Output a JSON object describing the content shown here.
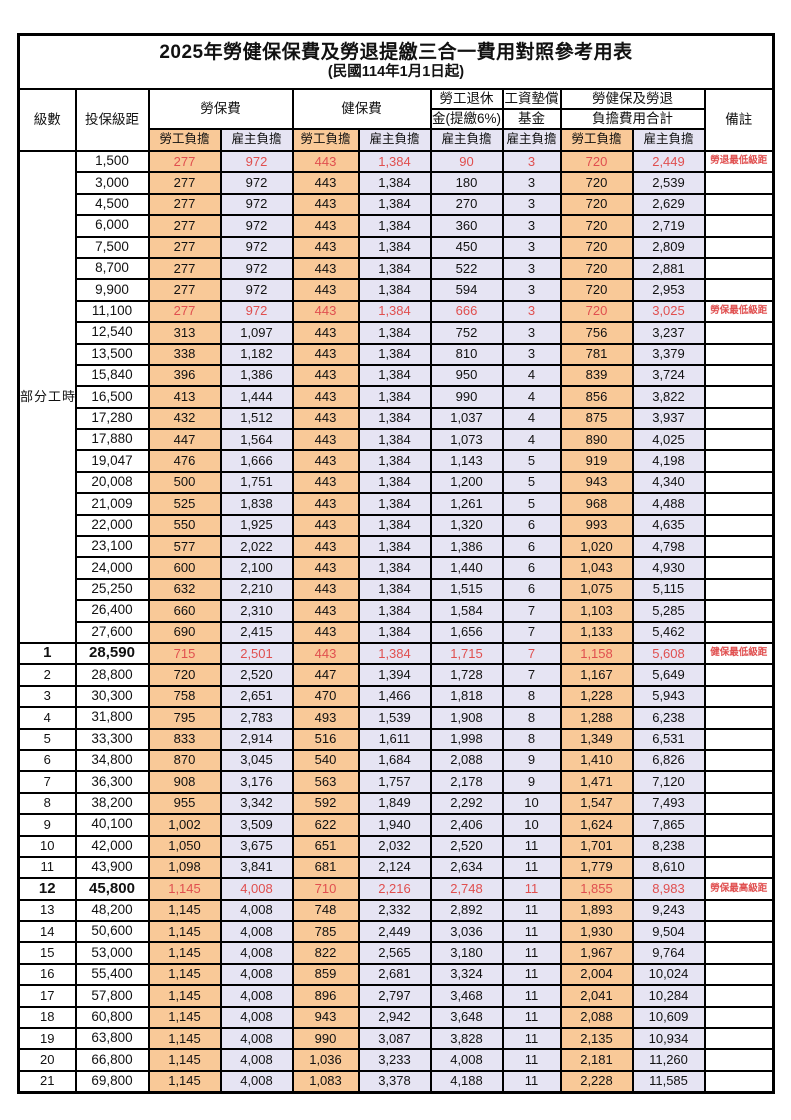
{
  "title": "2025年勞健保保費及勞退提繳三合一費用對照參考用表",
  "subtitle": "(民國114年1月1日起)",
  "header": {
    "level": "級數",
    "bracket": "投保級距",
    "labor_fee": "勞保費",
    "health_fee": "健保費",
    "pension_line1": "勞工退休",
    "pension_line2": "金(提繳6%)",
    "fund_line1": "工資墊償",
    "fund_line2": "基金",
    "total_line1": "勞健保及勞退",
    "total_line2": "負擔費用合計",
    "remark": "備註",
    "worker_share": "勞工負擔",
    "employer_share": "雇主負擔"
  },
  "part_time": {
    "label": "部分工時",
    "span": 23
  },
  "colors": {
    "worker_bg": "#f9c998",
    "employer_bg": "#e6e4f3",
    "highlight_red": "#e04f4f",
    "border": "#000000"
  },
  "value_columns": [
    "labor_worker",
    "labor_employer",
    "health_worker",
    "health_employer",
    "pension_employer",
    "fund_employer",
    "total_worker",
    "total_employer"
  ],
  "rows": [
    {
      "level": "",
      "bracket": "1,500",
      "v": [
        "277",
        "972",
        "443",
        "1,384",
        "90",
        "3",
        "720",
        "2,449"
      ],
      "remark": "勞退最低級距",
      "red": true,
      "bold": false
    },
    {
      "level": "",
      "bracket": "3,000",
      "v": [
        "277",
        "972",
        "443",
        "1,384",
        "180",
        "3",
        "720",
        "2,539"
      ],
      "remark": "",
      "red": false,
      "bold": false
    },
    {
      "level": "",
      "bracket": "4,500",
      "v": [
        "277",
        "972",
        "443",
        "1,384",
        "270",
        "3",
        "720",
        "2,629"
      ],
      "remark": "",
      "red": false,
      "bold": false
    },
    {
      "level": "",
      "bracket": "6,000",
      "v": [
        "277",
        "972",
        "443",
        "1,384",
        "360",
        "3",
        "720",
        "2,719"
      ],
      "remark": "",
      "red": false,
      "bold": false
    },
    {
      "level": "",
      "bracket": "7,500",
      "v": [
        "277",
        "972",
        "443",
        "1,384",
        "450",
        "3",
        "720",
        "2,809"
      ],
      "remark": "",
      "red": false,
      "bold": false
    },
    {
      "level": "",
      "bracket": "8,700",
      "v": [
        "277",
        "972",
        "443",
        "1,384",
        "522",
        "3",
        "720",
        "2,881"
      ],
      "remark": "",
      "red": false,
      "bold": false
    },
    {
      "level": "",
      "bracket": "9,900",
      "v": [
        "277",
        "972",
        "443",
        "1,384",
        "594",
        "3",
        "720",
        "2,953"
      ],
      "remark": "",
      "red": false,
      "bold": false
    },
    {
      "level": "",
      "bracket": "11,100",
      "v": [
        "277",
        "972",
        "443",
        "1,384",
        "666",
        "3",
        "720",
        "3,025"
      ],
      "remark": "勞保最低級距",
      "red": true,
      "bold": false
    },
    {
      "level": "",
      "bracket": "12,540",
      "v": [
        "313",
        "1,097",
        "443",
        "1,384",
        "752",
        "3",
        "756",
        "3,237"
      ],
      "remark": "",
      "red": false,
      "bold": false
    },
    {
      "level": "",
      "bracket": "13,500",
      "v": [
        "338",
        "1,182",
        "443",
        "1,384",
        "810",
        "3",
        "781",
        "3,379"
      ],
      "remark": "",
      "red": false,
      "bold": false
    },
    {
      "level": "",
      "bracket": "15,840",
      "v": [
        "396",
        "1,386",
        "443",
        "1,384",
        "950",
        "4",
        "839",
        "3,724"
      ],
      "remark": "",
      "red": false,
      "bold": false
    },
    {
      "level": "",
      "bracket": "16,500",
      "v": [
        "413",
        "1,444",
        "443",
        "1,384",
        "990",
        "4",
        "856",
        "3,822"
      ],
      "remark": "",
      "red": false,
      "bold": false
    },
    {
      "level": "",
      "bracket": "17,280",
      "v": [
        "432",
        "1,512",
        "443",
        "1,384",
        "1,037",
        "4",
        "875",
        "3,937"
      ],
      "remark": "",
      "red": false,
      "bold": false
    },
    {
      "level": "",
      "bracket": "17,880",
      "v": [
        "447",
        "1,564",
        "443",
        "1,384",
        "1,073",
        "4",
        "890",
        "4,025"
      ],
      "remark": "",
      "red": false,
      "bold": false
    },
    {
      "level": "",
      "bracket": "19,047",
      "v": [
        "476",
        "1,666",
        "443",
        "1,384",
        "1,143",
        "5",
        "919",
        "4,198"
      ],
      "remark": "",
      "red": false,
      "bold": false
    },
    {
      "level": "",
      "bracket": "20,008",
      "v": [
        "500",
        "1,751",
        "443",
        "1,384",
        "1,200",
        "5",
        "943",
        "4,340"
      ],
      "remark": "",
      "red": false,
      "bold": false
    },
    {
      "level": "",
      "bracket": "21,009",
      "v": [
        "525",
        "1,838",
        "443",
        "1,384",
        "1,261",
        "5",
        "968",
        "4,488"
      ],
      "remark": "",
      "red": false,
      "bold": false
    },
    {
      "level": "",
      "bracket": "22,000",
      "v": [
        "550",
        "1,925",
        "443",
        "1,384",
        "1,320",
        "6",
        "993",
        "4,635"
      ],
      "remark": "",
      "red": false,
      "bold": false
    },
    {
      "level": "",
      "bracket": "23,100",
      "v": [
        "577",
        "2,022",
        "443",
        "1,384",
        "1,386",
        "6",
        "1,020",
        "4,798"
      ],
      "remark": "",
      "red": false,
      "bold": false
    },
    {
      "level": "",
      "bracket": "24,000",
      "v": [
        "600",
        "2,100",
        "443",
        "1,384",
        "1,440",
        "6",
        "1,043",
        "4,930"
      ],
      "remark": "",
      "red": false,
      "bold": false
    },
    {
      "level": "",
      "bracket": "25,250",
      "v": [
        "632",
        "2,210",
        "443",
        "1,384",
        "1,515",
        "6",
        "1,075",
        "5,115"
      ],
      "remark": "",
      "red": false,
      "bold": false
    },
    {
      "level": "",
      "bracket": "26,400",
      "v": [
        "660",
        "2,310",
        "443",
        "1,384",
        "1,584",
        "7",
        "1,103",
        "5,285"
      ],
      "remark": "",
      "red": false,
      "bold": false
    },
    {
      "level": "",
      "bracket": "27,600",
      "v": [
        "690",
        "2,415",
        "443",
        "1,384",
        "1,656",
        "7",
        "1,133",
        "5,462"
      ],
      "remark": "",
      "red": false,
      "bold": false
    },
    {
      "level": "1",
      "bracket": "28,590",
      "v": [
        "715",
        "2,501",
        "443",
        "1,384",
        "1,715",
        "7",
        "1,158",
        "5,608"
      ],
      "remark": "健保最低級距",
      "red": true,
      "bold": true
    },
    {
      "level": "2",
      "bracket": "28,800",
      "v": [
        "720",
        "2,520",
        "447",
        "1,394",
        "1,728",
        "7",
        "1,167",
        "5,649"
      ],
      "remark": "",
      "red": false,
      "bold": false
    },
    {
      "level": "3",
      "bracket": "30,300",
      "v": [
        "758",
        "2,651",
        "470",
        "1,466",
        "1,818",
        "8",
        "1,228",
        "5,943"
      ],
      "remark": "",
      "red": false,
      "bold": false
    },
    {
      "level": "4",
      "bracket": "31,800",
      "v": [
        "795",
        "2,783",
        "493",
        "1,539",
        "1,908",
        "8",
        "1,288",
        "6,238"
      ],
      "remark": "",
      "red": false,
      "bold": false
    },
    {
      "level": "5",
      "bracket": "33,300",
      "v": [
        "833",
        "2,914",
        "516",
        "1,611",
        "1,998",
        "8",
        "1,349",
        "6,531"
      ],
      "remark": "",
      "red": false,
      "bold": false
    },
    {
      "level": "6",
      "bracket": "34,800",
      "v": [
        "870",
        "3,045",
        "540",
        "1,684",
        "2,088",
        "9",
        "1,410",
        "6,826"
      ],
      "remark": "",
      "red": false,
      "bold": false
    },
    {
      "level": "7",
      "bracket": "36,300",
      "v": [
        "908",
        "3,176",
        "563",
        "1,757",
        "2,178",
        "9",
        "1,471",
        "7,120"
      ],
      "remark": "",
      "red": false,
      "bold": false
    },
    {
      "level": "8",
      "bracket": "38,200",
      "v": [
        "955",
        "3,342",
        "592",
        "1,849",
        "2,292",
        "10",
        "1,547",
        "7,493"
      ],
      "remark": "",
      "red": false,
      "bold": false
    },
    {
      "level": "9",
      "bracket": "40,100",
      "v": [
        "1,002",
        "3,509",
        "622",
        "1,940",
        "2,406",
        "10",
        "1,624",
        "7,865"
      ],
      "remark": "",
      "red": false,
      "bold": false
    },
    {
      "level": "10",
      "bracket": "42,000",
      "v": [
        "1,050",
        "3,675",
        "651",
        "2,032",
        "2,520",
        "11",
        "1,701",
        "8,238"
      ],
      "remark": "",
      "red": false,
      "bold": false
    },
    {
      "level": "11",
      "bracket": "43,900",
      "v": [
        "1,098",
        "3,841",
        "681",
        "2,124",
        "2,634",
        "11",
        "1,779",
        "8,610"
      ],
      "remark": "",
      "red": false,
      "bold": false
    },
    {
      "level": "12",
      "bracket": "45,800",
      "v": [
        "1,145",
        "4,008",
        "710",
        "2,216",
        "2,748",
        "11",
        "1,855",
        "8,983"
      ],
      "remark": "勞保最高級距",
      "red": true,
      "bold": true
    },
    {
      "level": "13",
      "bracket": "48,200",
      "v": [
        "1,145",
        "4,008",
        "748",
        "2,332",
        "2,892",
        "11",
        "1,893",
        "9,243"
      ],
      "remark": "",
      "red": false,
      "bold": false
    },
    {
      "level": "14",
      "bracket": "50,600",
      "v": [
        "1,145",
        "4,008",
        "785",
        "2,449",
        "3,036",
        "11",
        "1,930",
        "9,504"
      ],
      "remark": "",
      "red": false,
      "bold": false
    },
    {
      "level": "15",
      "bracket": "53,000",
      "v": [
        "1,145",
        "4,008",
        "822",
        "2,565",
        "3,180",
        "11",
        "1,967",
        "9,764"
      ],
      "remark": "",
      "red": false,
      "bold": false
    },
    {
      "level": "16",
      "bracket": "55,400",
      "v": [
        "1,145",
        "4,008",
        "859",
        "2,681",
        "3,324",
        "11",
        "2,004",
        "10,024"
      ],
      "remark": "",
      "red": false,
      "bold": false
    },
    {
      "level": "17",
      "bracket": "57,800",
      "v": [
        "1,145",
        "4,008",
        "896",
        "2,797",
        "3,468",
        "11",
        "2,041",
        "10,284"
      ],
      "remark": "",
      "red": false,
      "bold": false
    },
    {
      "level": "18",
      "bracket": "60,800",
      "v": [
        "1,145",
        "4,008",
        "943",
        "2,942",
        "3,648",
        "11",
        "2,088",
        "10,609"
      ],
      "remark": "",
      "red": false,
      "bold": false
    },
    {
      "level": "19",
      "bracket": "63,800",
      "v": [
        "1,145",
        "4,008",
        "990",
        "3,087",
        "3,828",
        "11",
        "2,135",
        "10,934"
      ],
      "remark": "",
      "red": false,
      "bold": false
    },
    {
      "level": "20",
      "bracket": "66,800",
      "v": [
        "1,145",
        "4,008",
        "1,036",
        "3,233",
        "4,008",
        "11",
        "2,181",
        "11,260"
      ],
      "remark": "",
      "red": false,
      "bold": false
    },
    {
      "level": "21",
      "bracket": "69,800",
      "v": [
        "1,145",
        "4,008",
        "1,083",
        "3,378",
        "4,188",
        "11",
        "2,228",
        "11,585"
      ],
      "remark": "",
      "red": false,
      "bold": false
    }
  ]
}
